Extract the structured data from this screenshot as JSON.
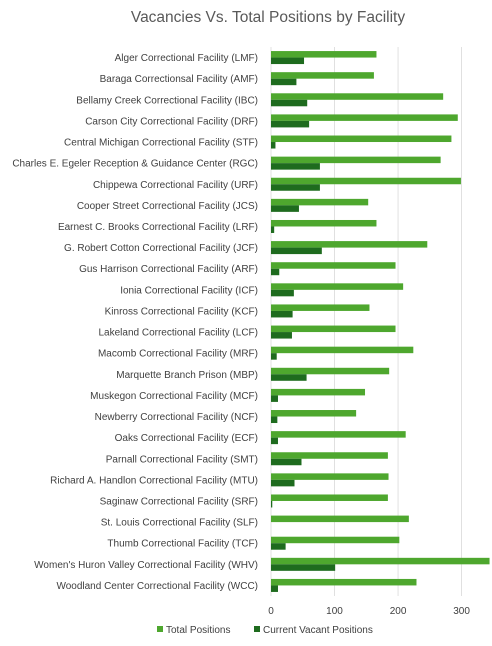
{
  "chart_data": {
    "type": "bar",
    "orientation": "horizontal",
    "title": "Vacancies Vs. Total Positions by Facility",
    "xlabel": "",
    "ylabel": "",
    "xlim": [
      0,
      340
    ],
    "xticks": [
      0,
      100,
      200,
      300
    ],
    "grid": true,
    "legend_position": "bottom",
    "categories": [
      "Alger Correctional Facility (LMF)",
      "Baraga Correctionsal Facility (AMF)",
      "Bellamy Creek Correctional Facility (IBC)",
      "Carson City Correctional Facility (DRF)",
      "Central Michigan Correctional Facility (STF)",
      "Charles E. Egeler Reception & Guidance Center (RGC)",
      "Chippewa Correctional Facility (URF)",
      "Cooper Street Correctional Facility (JCS)",
      "Earnest C. Brooks Correctional Facility (LRF)",
      "G. Robert Cotton Correctional Facility (JCF)",
      "Gus Harrison Correctional Facility (ARF)",
      "Ionia Correctional Facility (ICF)",
      "Kinross Correctional Facility (KCF)",
      "Lakeland Correctional Facility (LCF)",
      "Macomb Correctional Facility (MRF)",
      "Marquette Branch Prison (MBP)",
      "Muskegon Correctional Facility (MCF)",
      "Newberry Correctional Facility (NCF)",
      "Oaks Correctional Facility (ECF)",
      "Parnall Correctional Facility (SMT)",
      "Richard A. Handlon Correctional Facility (MTU)",
      "Saginaw Correctional Facility (SRF)",
      "St. Louis Correctional Facility (SLF)",
      "Thumb Correctional Facility (TCF)",
      "Women's Huron Valley Correctional Facility (WHV)",
      "Woodland Center Correctional Facility (WCC)"
    ],
    "series": [
      {
        "name": "Total Positions",
        "color": "#4ea72e",
        "values": [
          166,
          162,
          271,
          294,
          284,
          267,
          299,
          153,
          166,
          246,
          196,
          208,
          155,
          196,
          224,
          186,
          148,
          134,
          212,
          184,
          185,
          184,
          217,
          202,
          344,
          229
        ]
      },
      {
        "name": "Current Vacant Positions",
        "color": "#1e6b1e",
        "values": [
          52,
          40,
          57,
          60,
          7,
          77,
          77,
          44,
          5,
          80,
          13,
          36,
          34,
          33,
          9,
          56,
          11,
          10,
          11,
          48,
          37,
          2,
          0,
          23,
          101,
          11
        ]
      }
    ]
  }
}
